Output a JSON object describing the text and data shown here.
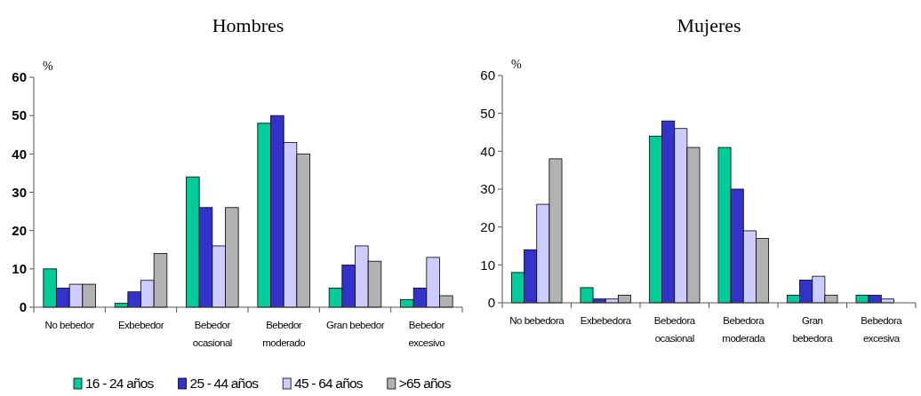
{
  "chart_data": [
    {
      "type": "bar",
      "title": "Hombres",
      "ylabel": "%",
      "categories": [
        "No bebedor",
        "Exbebedor",
        "Bebedor\nocasional",
        "Bebedor\nmoderado",
        "Gran bebedor",
        "Bebedor\nexcesivo"
      ],
      "ylim": [
        0,
        60
      ],
      "yticks": [
        0,
        10,
        20,
        30,
        40,
        50,
        60
      ],
      "legend": "bottom",
      "grid": false,
      "series": [
        {
          "name": "16 - 24 años",
          "color": "#00cc99",
          "values": [
            10,
            1,
            34,
            48,
            5,
            2
          ]
        },
        {
          "name": "25 - 44 años",
          "color": "#3333cc",
          "values": [
            5,
            4,
            26,
            50,
            11,
            5
          ]
        },
        {
          "name": "45 - 64 años",
          "color": "#ccccff",
          "values": [
            6,
            7,
            16,
            43,
            16,
            13
          ]
        },
        {
          "name": ">65 años",
          "color": "#b2b2b2",
          "values": [
            6,
            14,
            26,
            40,
            12,
            3
          ]
        }
      ]
    },
    {
      "type": "bar",
      "title": "Mujeres",
      "ylabel": "%",
      "categories": [
        "No bebedora",
        "Exbebedora",
        "Bebedora\nocasional",
        "Bebedora\nmoderada",
        "Gran\nbebedora",
        "Bebedora\nexcesiva"
      ],
      "ylim": [
        0,
        60
      ],
      "yticks": [
        0,
        10,
        20,
        30,
        40,
        50,
        60
      ],
      "grid": false,
      "series": [
        {
          "color": "#00cc99",
          "values": [
            8,
            4,
            44,
            41,
            2,
            2
          ]
        },
        {
          "color": "#3333cc",
          "values": [
            14,
            1,
            48,
            30,
            6,
            2
          ]
        },
        {
          "color": "#ccccff",
          "values": [
            26,
            1,
            46,
            19,
            7,
            1
          ]
        },
        {
          "color": "#b2b2b2",
          "values": [
            38,
            2,
            41,
            17,
            2,
            null
          ]
        }
      ]
    }
  ]
}
